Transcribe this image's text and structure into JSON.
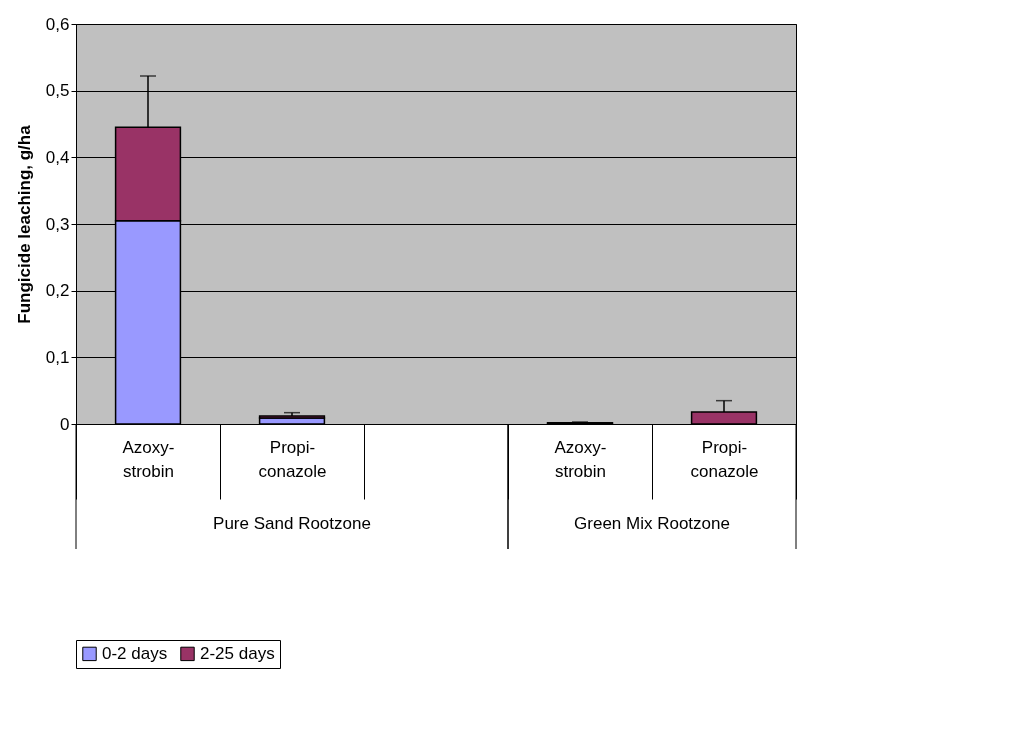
{
  "chart_data": {
    "type": "bar",
    "stacked": true,
    "ylabel": "Fungicide leaching, g/ha",
    "categories": [
      "Azoxy-\nstrobin",
      "Propi-\nconazole",
      null,
      "Azoxy-\nstrobin",
      "Propi-\nconazole"
    ],
    "series": [
      {
        "name": "0-2 days",
        "color": "#9999ff",
        "values": [
          0.305,
          0.009,
          null,
          0.001,
          0
        ]
      },
      {
        "name": "2-25 days",
        "color": "#993366",
        "values": [
          0.14,
          0.003,
          null,
          0.001,
          0.018
        ],
        "errors": [
          [
            0.445,
            0.522
          ],
          [
            0.012,
            0.017
          ],
          null,
          [
            0.002,
            0.003
          ],
          [
            0.018,
            0.035
          ]
        ]
      }
    ],
    "ylim": [
      0,
      0.6
    ],
    "yticks": [
      {
        "value": 0,
        "label": "0"
      },
      {
        "value": 0.1,
        "label": "0,1"
      },
      {
        "value": 0.2,
        "label": "0,2"
      },
      {
        "value": 0.3,
        "label": "0,3"
      },
      {
        "value": 0.4,
        "label": "0,4"
      },
      {
        "value": 0.5,
        "label": "0,5"
      },
      {
        "value": 0.6,
        "label": "0,6"
      }
    ],
    "grid": "y",
    "legend": "bottom",
    "annotations": [
      "Pure Sand Rootzone",
      "Green Mix Rootzone"
    ]
  }
}
